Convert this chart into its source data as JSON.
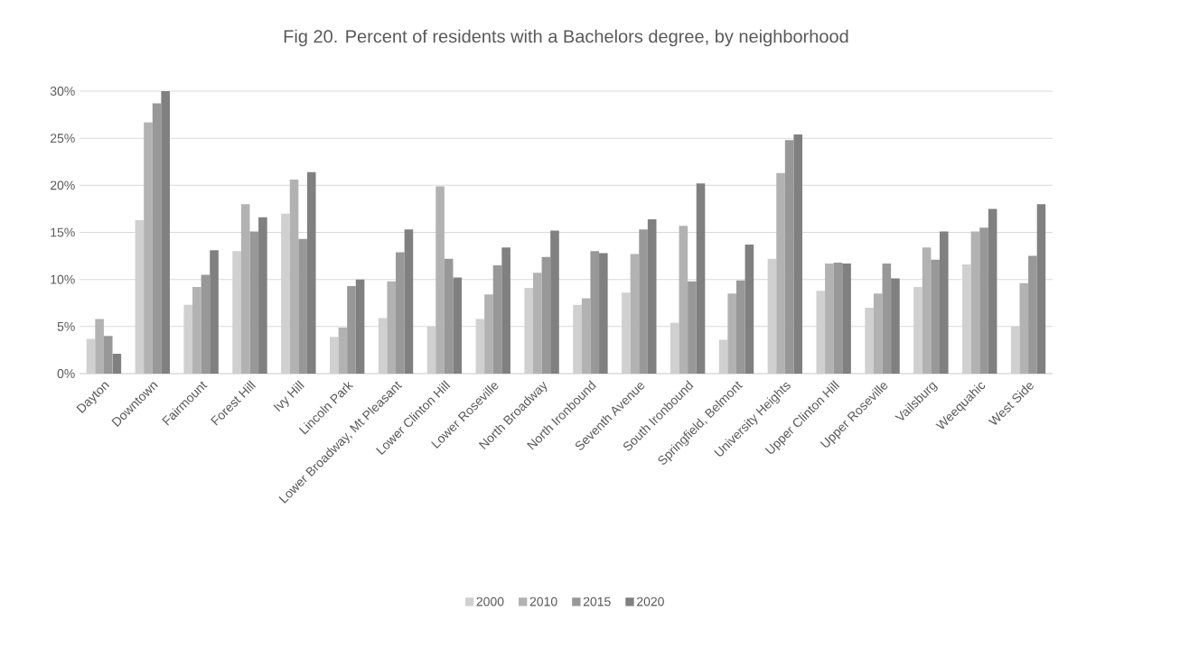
{
  "chart_data": {
    "type": "bar",
    "title": "Fig 20. Percent of residents with a Bachelors degree, by neighborhood",
    "categories": [
      "Dayton",
      "Downtown",
      "Fairmount",
      "Forest Hill",
      "Ivy Hill",
      "Lincoln Park",
      "Lower Broadway, Mt Pleasant",
      "Lower Clinton Hill",
      "Lower Roseville",
      "North Broadway",
      "North Ironbound",
      "Seventh Avenue",
      "South Ironbound",
      "Springfield, Belmont",
      "University Heights",
      "Upper Clinton Hill",
      "Upper Roseville",
      "Vailsburg",
      "Weequahic",
      "West Side"
    ],
    "series": [
      {
        "name": "2000",
        "color": "#d0d0d0",
        "values": [
          3.7,
          16.3,
          7.3,
          13.0,
          17.0,
          3.9,
          5.9,
          5.0,
          5.8,
          9.1,
          7.3,
          8.6,
          5.4,
          3.6,
          12.2,
          8.8,
          7.0,
          9.2,
          11.6,
          5.0
        ]
      },
      {
        "name": "2010",
        "color": "#b2b2b2",
        "values": [
          5.8,
          26.7,
          9.2,
          18.0,
          20.6,
          4.9,
          9.8,
          19.9,
          8.4,
          10.7,
          8.0,
          12.7,
          15.7,
          8.5,
          21.3,
          11.7,
          8.5,
          13.4,
          15.1,
          9.6
        ]
      },
      {
        "name": "2015",
        "color": "#989898",
        "values": [
          4.0,
          28.7,
          10.5,
          15.1,
          14.3,
          9.3,
          12.9,
          12.2,
          11.5,
          12.4,
          13.0,
          15.3,
          9.8,
          9.9,
          24.8,
          11.8,
          11.7,
          12.1,
          15.5,
          12.5
        ]
      },
      {
        "name": "2020",
        "color": "#808080",
        "values": [
          2.1,
          30.0,
          13.1,
          16.6,
          21.4,
          10.0,
          15.3,
          10.2,
          13.4,
          15.2,
          12.8,
          16.4,
          20.2,
          13.7,
          25.4,
          11.7,
          10.1,
          15.1,
          17.5,
          18.0
        ]
      }
    ],
    "ylim": [
      0,
      30
    ],
    "yticks": [
      {
        "value": 0,
        "label": "0%"
      },
      {
        "value": 5,
        "label": "5%"
      },
      {
        "value": 10,
        "label": "10%"
      },
      {
        "value": 15,
        "label": "15%"
      },
      {
        "value": 20,
        "label": "20%"
      },
      {
        "value": 25,
        "label": "25%"
      },
      {
        "value": 30,
        "label": "30%"
      }
    ],
    "grid": "y",
    "legend": "bottom"
  }
}
